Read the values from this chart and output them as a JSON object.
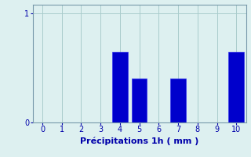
{
  "categories": [
    0,
    1,
    2,
    3,
    4,
    5,
    6,
    7,
    8,
    9,
    10
  ],
  "values": [
    0,
    0,
    0,
    0,
    0.65,
    0.4,
    0,
    0.4,
    0,
    0,
    0.65
  ],
  "bar_color": "#0000cc",
  "bar_edge_color": "#3333ee",
  "background_color": "#ddf0f0",
  "xlabel": "Précipitations 1h ( mm )",
  "xlabel_color": "#0000aa",
  "tick_color": "#0000aa",
  "grid_color": "#aacccc",
  "spine_color": "#7799aa",
  "ylim": [
    0,
    1.08
  ],
  "xlim": [
    -0.5,
    10.5
  ],
  "yticks": [
    0,
    1
  ],
  "xticks": [
    0,
    1,
    2,
    3,
    4,
    5,
    6,
    7,
    8,
    9,
    10
  ],
  "tick_fontsize": 7,
  "xlabel_fontsize": 8,
  "bar_width": 0.8
}
